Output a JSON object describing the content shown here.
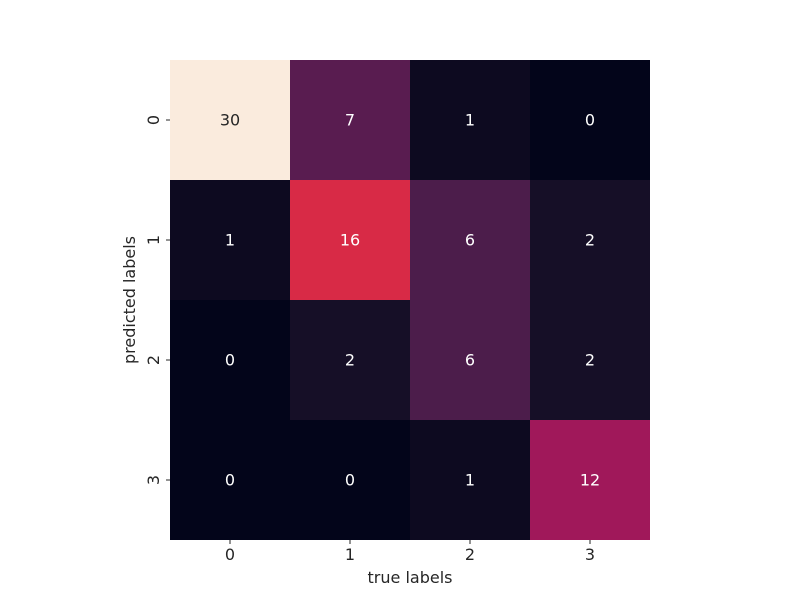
{
  "chart_data": {
    "type": "heatmap",
    "title": "",
    "xlabel": "true labels",
    "ylabel": "predicted labels",
    "x_categories": [
      "0",
      "1",
      "2",
      "3"
    ],
    "y_categories": [
      "0",
      "1",
      "2",
      "3"
    ],
    "values": [
      [
        30,
        7,
        1,
        0
      ],
      [
        1,
        16,
        6,
        2
      ],
      [
        0,
        2,
        6,
        2
      ],
      [
        0,
        0,
        1,
        12
      ]
    ],
    "value_range": [
      0,
      30
    ],
    "colormap": "rocket",
    "colorbar": false,
    "grid": false,
    "annotations": true
  }
}
